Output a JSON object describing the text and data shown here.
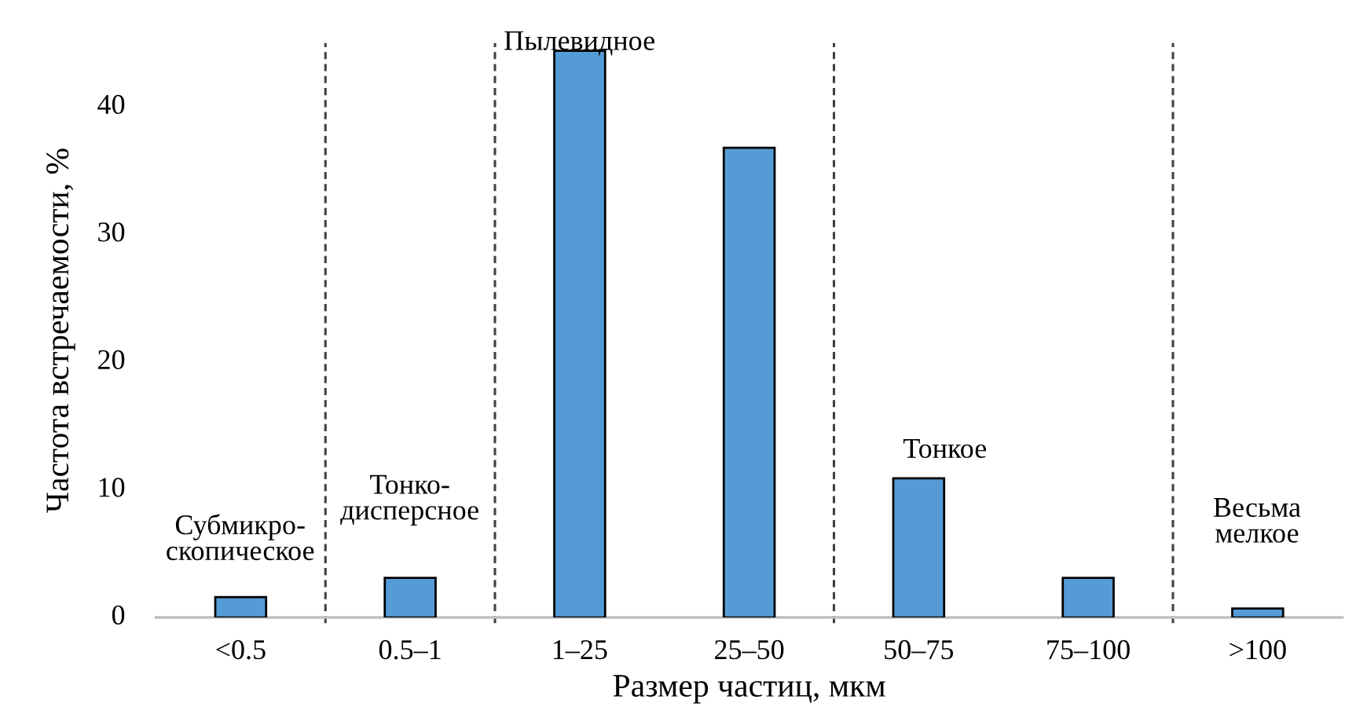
{
  "chart_data": {
    "type": "bar",
    "xlabel": "Размер частиц, мкм",
    "ylabel": "Частота встречаемости, %",
    "categories": [
      "<0.5",
      "0.5–1",
      "1–25",
      "25–50",
      "50–75",
      "75–100",
      ">100"
    ],
    "values": [
      1.6,
      3.1,
      44.4,
      36.8,
      10.9,
      3.1,
      0.7
    ],
    "color": "#559bd6",
    "ylim": [
      0,
      45
    ],
    "yticks": [
      0,
      10,
      20,
      30,
      40
    ],
    "grid": false,
    "legend": false,
    "annotations": [
      "Субмикро-\nскопическое",
      "Тонко-\nдисперсное",
      "Пылевидное",
      "Тонкое",
      "Весьма\nмелкое"
    ]
  }
}
